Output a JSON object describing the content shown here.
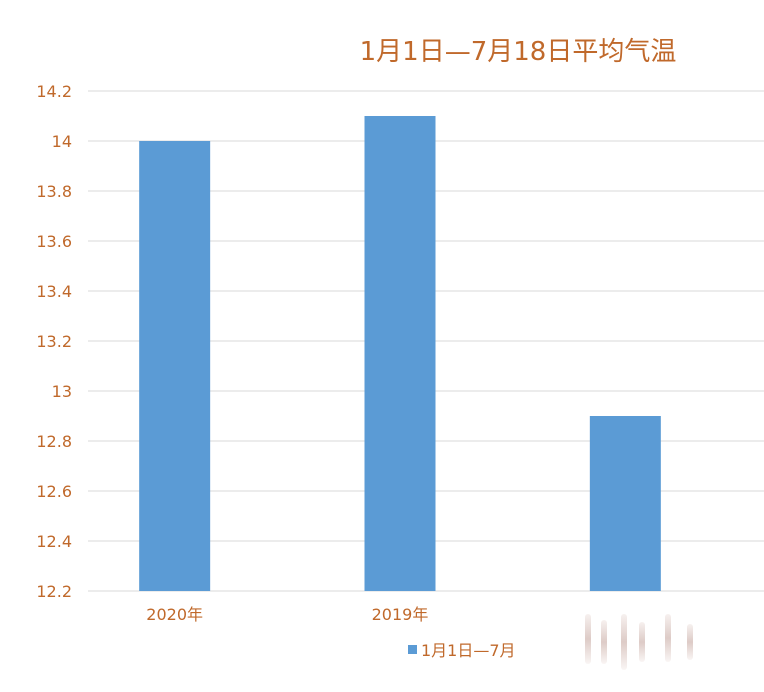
{
  "colors": {
    "bar": "#5b9bd5",
    "text": "#c0692b",
    "grid": "#d9d9d9",
    "background": "#ffffff"
  },
  "chart_data": {
    "type": "bar",
    "title": "1月1日—7月18日平均气温",
    "categories": [
      "2020年",
      "2019年",
      ""
    ],
    "series": [
      {
        "name": "1月1日—7月",
        "values": [
          14.0,
          14.1,
          12.9
        ]
      }
    ],
    "yticks": [
      "12.2",
      "12.4",
      "12.6",
      "12.8",
      "13",
      "13.2",
      "13.4",
      "13.6",
      "13.8",
      "14",
      "14.2"
    ],
    "ylim": [
      12.2,
      14.2
    ],
    "grid": true,
    "legend": "bottom"
  }
}
